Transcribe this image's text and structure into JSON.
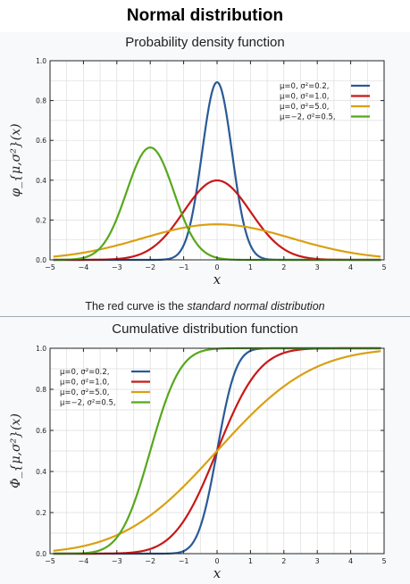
{
  "header": {
    "title": "Normal distribution"
  },
  "pdf_section": {
    "title": "Probability density function",
    "caption_prefix": "The red curve is the ",
    "caption_emphasis": "standard normal distribution"
  },
  "cdf_section": {
    "title": "Cumulative distribution function"
  },
  "colors": {
    "blue": "#2a5a96",
    "red": "#c81818",
    "orange": "#d9a012",
    "green": "#56a81c",
    "grid": "#dddddd",
    "frame": "#222222"
  },
  "chart_data": [
    {
      "type": "line",
      "title": "Probability density function",
      "xlabel": "x",
      "ylabel": "φ_{μ,σ²}(x)",
      "xlim": [
        -5,
        5
      ],
      "ylim": [
        0,
        1.0
      ],
      "xticks": [
        "−5",
        "−4",
        "−3",
        "−2",
        "−1",
        "0",
        "1",
        "2",
        "3",
        "4",
        "5"
      ],
      "yticks": [
        "0.0",
        "0.2",
        "0.4",
        "0.6",
        "0.8",
        "1.0"
      ],
      "grid": true,
      "legend_position": "top-right",
      "series": [
        {
          "name": "μ=0,   σ²=0.2,",
          "mu": 0,
          "variance": 0.2,
          "color": "#2a5a96"
        },
        {
          "name": "μ=0,   σ²=1.0,",
          "mu": 0,
          "variance": 1.0,
          "color": "#c81818"
        },
        {
          "name": "μ=0,   σ²=5.0,",
          "mu": 0,
          "variance": 5.0,
          "color": "#d9a012"
        },
        {
          "name": "μ=−2, σ²=0.5,",
          "mu": -2,
          "variance": 0.5,
          "color": "#56a81c"
        }
      ]
    },
    {
      "type": "line",
      "title": "Cumulative distribution function",
      "xlabel": "x",
      "ylabel": "Φ_{μ,σ²}(x)",
      "xlim": [
        -5,
        5
      ],
      "ylim": [
        0,
        1.0
      ],
      "xticks": [
        "−5",
        "−4",
        "−3",
        "−2",
        "−1",
        "0",
        "1",
        "2",
        "3",
        "4",
        "5"
      ],
      "yticks": [
        "0.0",
        "0.2",
        "0.4",
        "0.6",
        "0.8",
        "1.0"
      ],
      "grid": true,
      "legend_position": "top-left",
      "series": [
        {
          "name": "μ=0,   σ²=0.2,",
          "mu": 0,
          "variance": 0.2,
          "color": "#2a5a96"
        },
        {
          "name": "μ=0,   σ²=1.0,",
          "mu": 0,
          "variance": 1.0,
          "color": "#c81818"
        },
        {
          "name": "μ=0,   σ²=5.0,",
          "mu": 0,
          "variance": 5.0,
          "color": "#d9a012"
        },
        {
          "name": "μ=−2, σ²=0.5,",
          "mu": -2,
          "variance": 0.5,
          "color": "#56a81c"
        }
      ]
    }
  ]
}
